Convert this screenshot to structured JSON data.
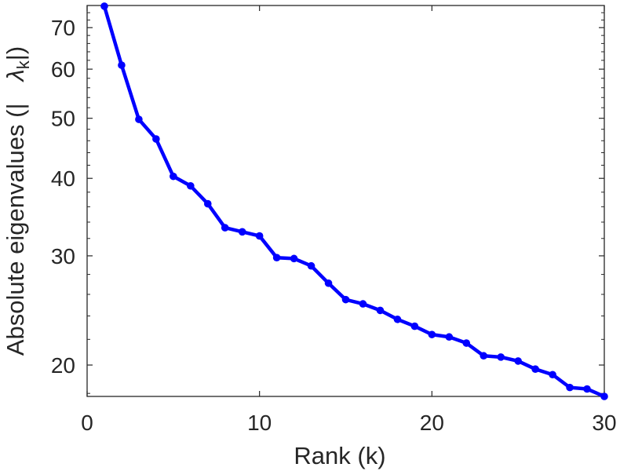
{
  "chart_data": {
    "type": "line",
    "title": "",
    "xlabel": "Rank (k)",
    "ylabel": "Absolute eigenvalues (|λk|)",
    "ylabel_parts": {
      "main": "Absolute eigenvalues (|",
      "symbol": "λ",
      "subscript": "k",
      "close": "|)"
    },
    "xscale": "linear",
    "yscale": "log",
    "xlim": [
      0,
      30
    ],
    "ylim": [
      17.8,
      76
    ],
    "xticks": [
      0,
      10,
      20,
      30
    ],
    "yticks": [
      20,
      30,
      40,
      50,
      60,
      70
    ],
    "grid": false,
    "legend": "none",
    "series": [
      {
        "color": "#0000ff",
        "marker": "circle",
        "x": [
          1,
          2,
          3,
          4,
          5,
          6,
          7,
          8,
          9,
          10,
          11,
          12,
          13,
          14,
          15,
          16,
          17,
          18,
          19,
          20,
          21,
          22,
          23,
          24,
          25,
          26,
          27,
          28,
          29,
          30
        ],
        "values": [
          75.8,
          60.9,
          49.8,
          46.3,
          40.3,
          38.9,
          36.4,
          33.3,
          32.8,
          32.3,
          29.8,
          29.7,
          28.9,
          27.1,
          25.5,
          25.1,
          24.5,
          23.7,
          23.1,
          22.4,
          22.2,
          21.7,
          20.7,
          20.6,
          20.3,
          19.7,
          19.3,
          18.4,
          18.3,
          17.8
        ]
      }
    ]
  }
}
